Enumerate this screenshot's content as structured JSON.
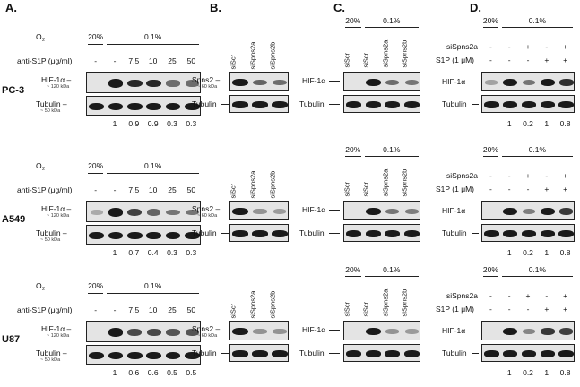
{
  "panel_letters": [
    "A.",
    "B.",
    "C.",
    "D."
  ],
  "cell_lines": [
    "PC-3",
    "A549",
    "U87"
  ],
  "panel_a": {
    "o2_label": "O",
    "o2_sub": "2",
    "o2_levels": [
      "20%",
      "0.1%"
    ],
    "treatment_label": "anti-S1P (μg/ml)",
    "doses": [
      "-",
      "-",
      "7.5",
      "10",
      "25",
      "50"
    ],
    "target_label": "HIF-1α –",
    "target_kda": "~ 120 kDa",
    "loading_label": "Tubulin –",
    "loading_kda": "~ 50 kDa",
    "quant": [
      [
        "1",
        "0.9",
        "0.9",
        "0.3",
        "0.3"
      ],
      [
        "1",
        "0.7",
        "0.4",
        "0.3",
        "0.3"
      ],
      [
        "1",
        "0.6",
        "0.6",
        "0.5",
        "0.5"
      ]
    ]
  },
  "panel_b": {
    "lanes": [
      "siScr",
      "siSpns2a",
      "siSpns2b"
    ],
    "target_label": "Spns2 –",
    "target_kda": "~ 60 kDa",
    "loading_label": "Tubulin"
  },
  "panel_c": {
    "o2_levels": [
      "20%",
      "0.1%"
    ],
    "lanes": [
      "siScr",
      "siScr",
      "siSpns2a",
      "siSpns2b"
    ],
    "target_label": "HIF-1α",
    "loading_label": "Tubulin"
  },
  "panel_d": {
    "o2_levels": [
      "20%",
      "0.1%"
    ],
    "row1_label": "siSpns2a",
    "row1_values": [
      "-",
      "-",
      "+",
      "-",
      "+"
    ],
    "row2_label": "S1P (1 μM)",
    "row2_values": [
      "-",
      "-",
      "-",
      "+",
      "+"
    ],
    "target_label": "HIF-1α",
    "loading_label": "Tubulin",
    "quant": [
      "1",
      "0.2",
      "1",
      "0.8"
    ]
  }
}
